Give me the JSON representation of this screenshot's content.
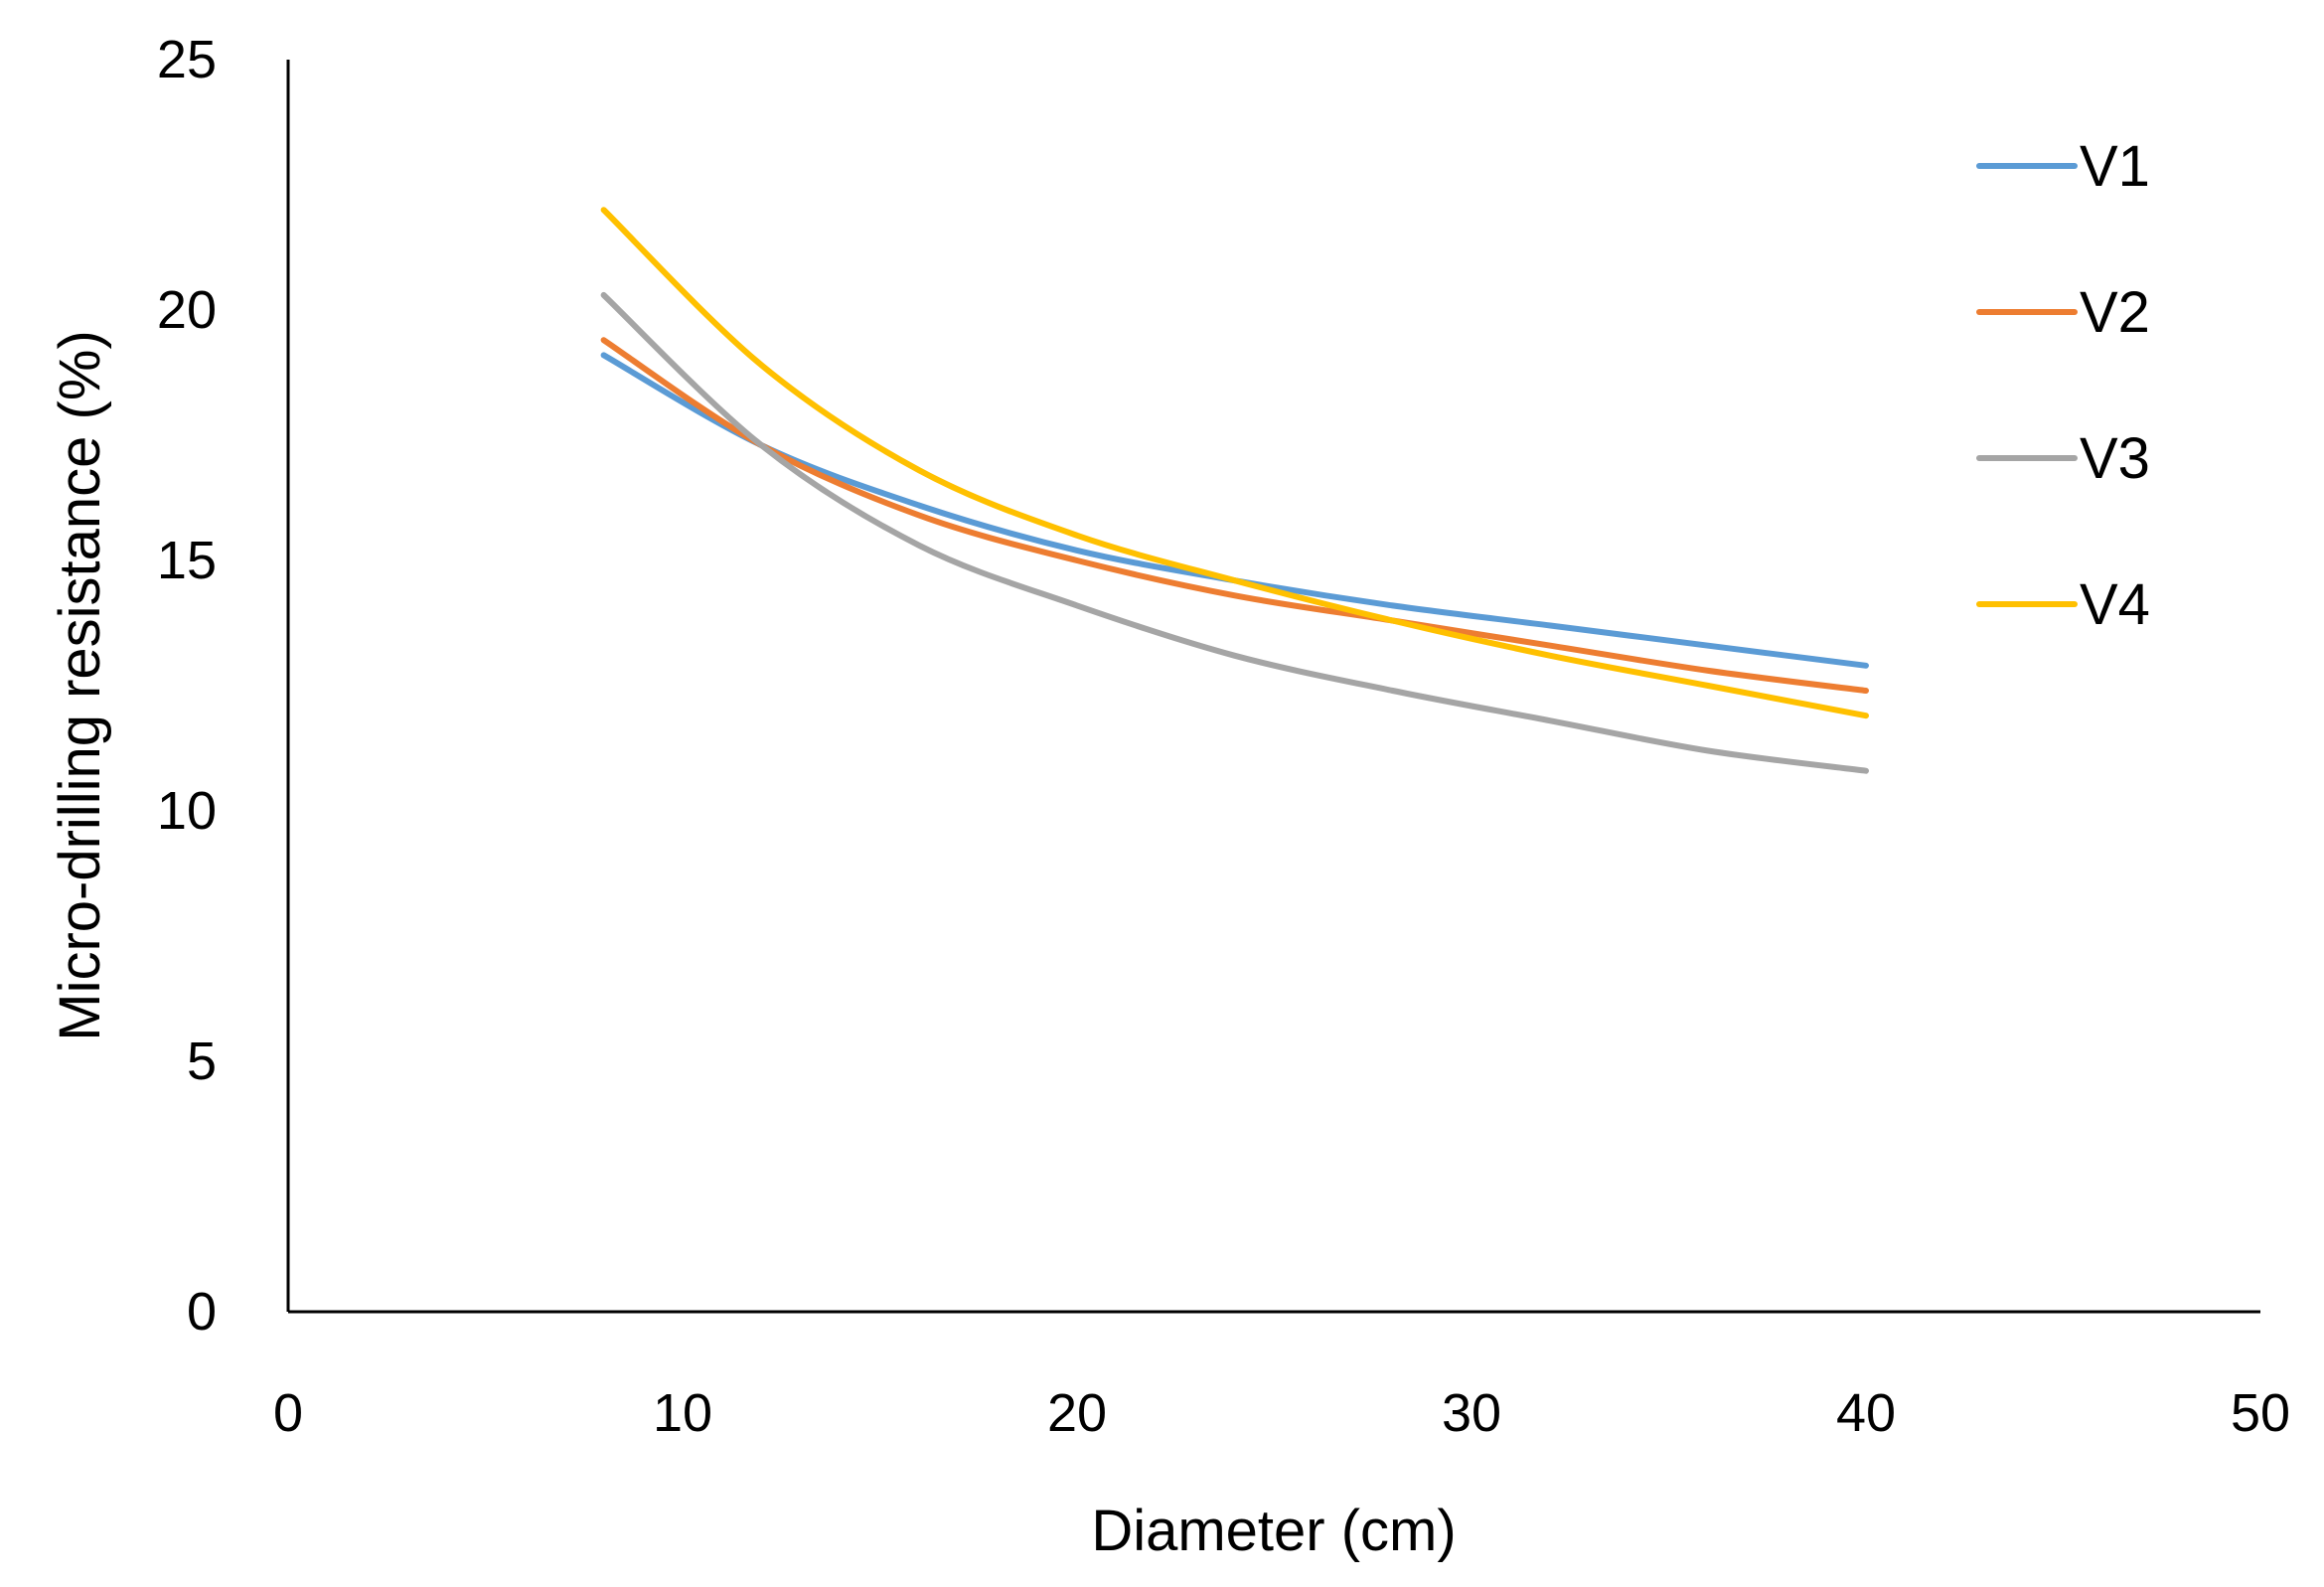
{
  "chart_data": {
    "type": "line",
    "title": "",
    "xlabel": "Diameter (cm)",
    "ylabel": "Micro-drilling resistance (%)",
    "xlim": [
      0,
      50
    ],
    "ylim": [
      0,
      25
    ],
    "xticks": [
      0,
      10,
      20,
      30,
      40,
      50
    ],
    "yticks": [
      0,
      5,
      10,
      15,
      20,
      25
    ],
    "grid": false,
    "legend": "right",
    "series": [
      {
        "name": "V1",
        "color": "#5B9BD5",
        "x": [
          8,
          12,
          16,
          20,
          24,
          28,
          32,
          36,
          40
        ],
        "y": [
          19.1,
          17.3,
          16.1,
          15.2,
          14.6,
          14.1,
          13.7,
          13.3,
          12.9
        ]
      },
      {
        "name": "V2",
        "color": "#ED7D31",
        "x": [
          8,
          12,
          16,
          20,
          24,
          28,
          32,
          36,
          40
        ],
        "y": [
          19.4,
          17.3,
          15.9,
          15.0,
          14.3,
          13.8,
          13.3,
          12.8,
          12.4
        ]
      },
      {
        "name": "V3",
        "color": "#A5A5A5",
        "x": [
          8,
          12,
          16,
          20,
          24,
          28,
          32,
          36,
          40
        ],
        "y": [
          20.3,
          17.3,
          15.3,
          14.1,
          13.1,
          12.4,
          11.8,
          11.2,
          10.8
        ]
      },
      {
        "name": "V4",
        "color": "#FFC000",
        "x": [
          8,
          12,
          16,
          20,
          24,
          28,
          32,
          36,
          40
        ],
        "y": [
          22.0,
          18.9,
          16.8,
          15.5,
          14.6,
          13.8,
          13.1,
          12.5,
          11.9
        ]
      }
    ]
  }
}
